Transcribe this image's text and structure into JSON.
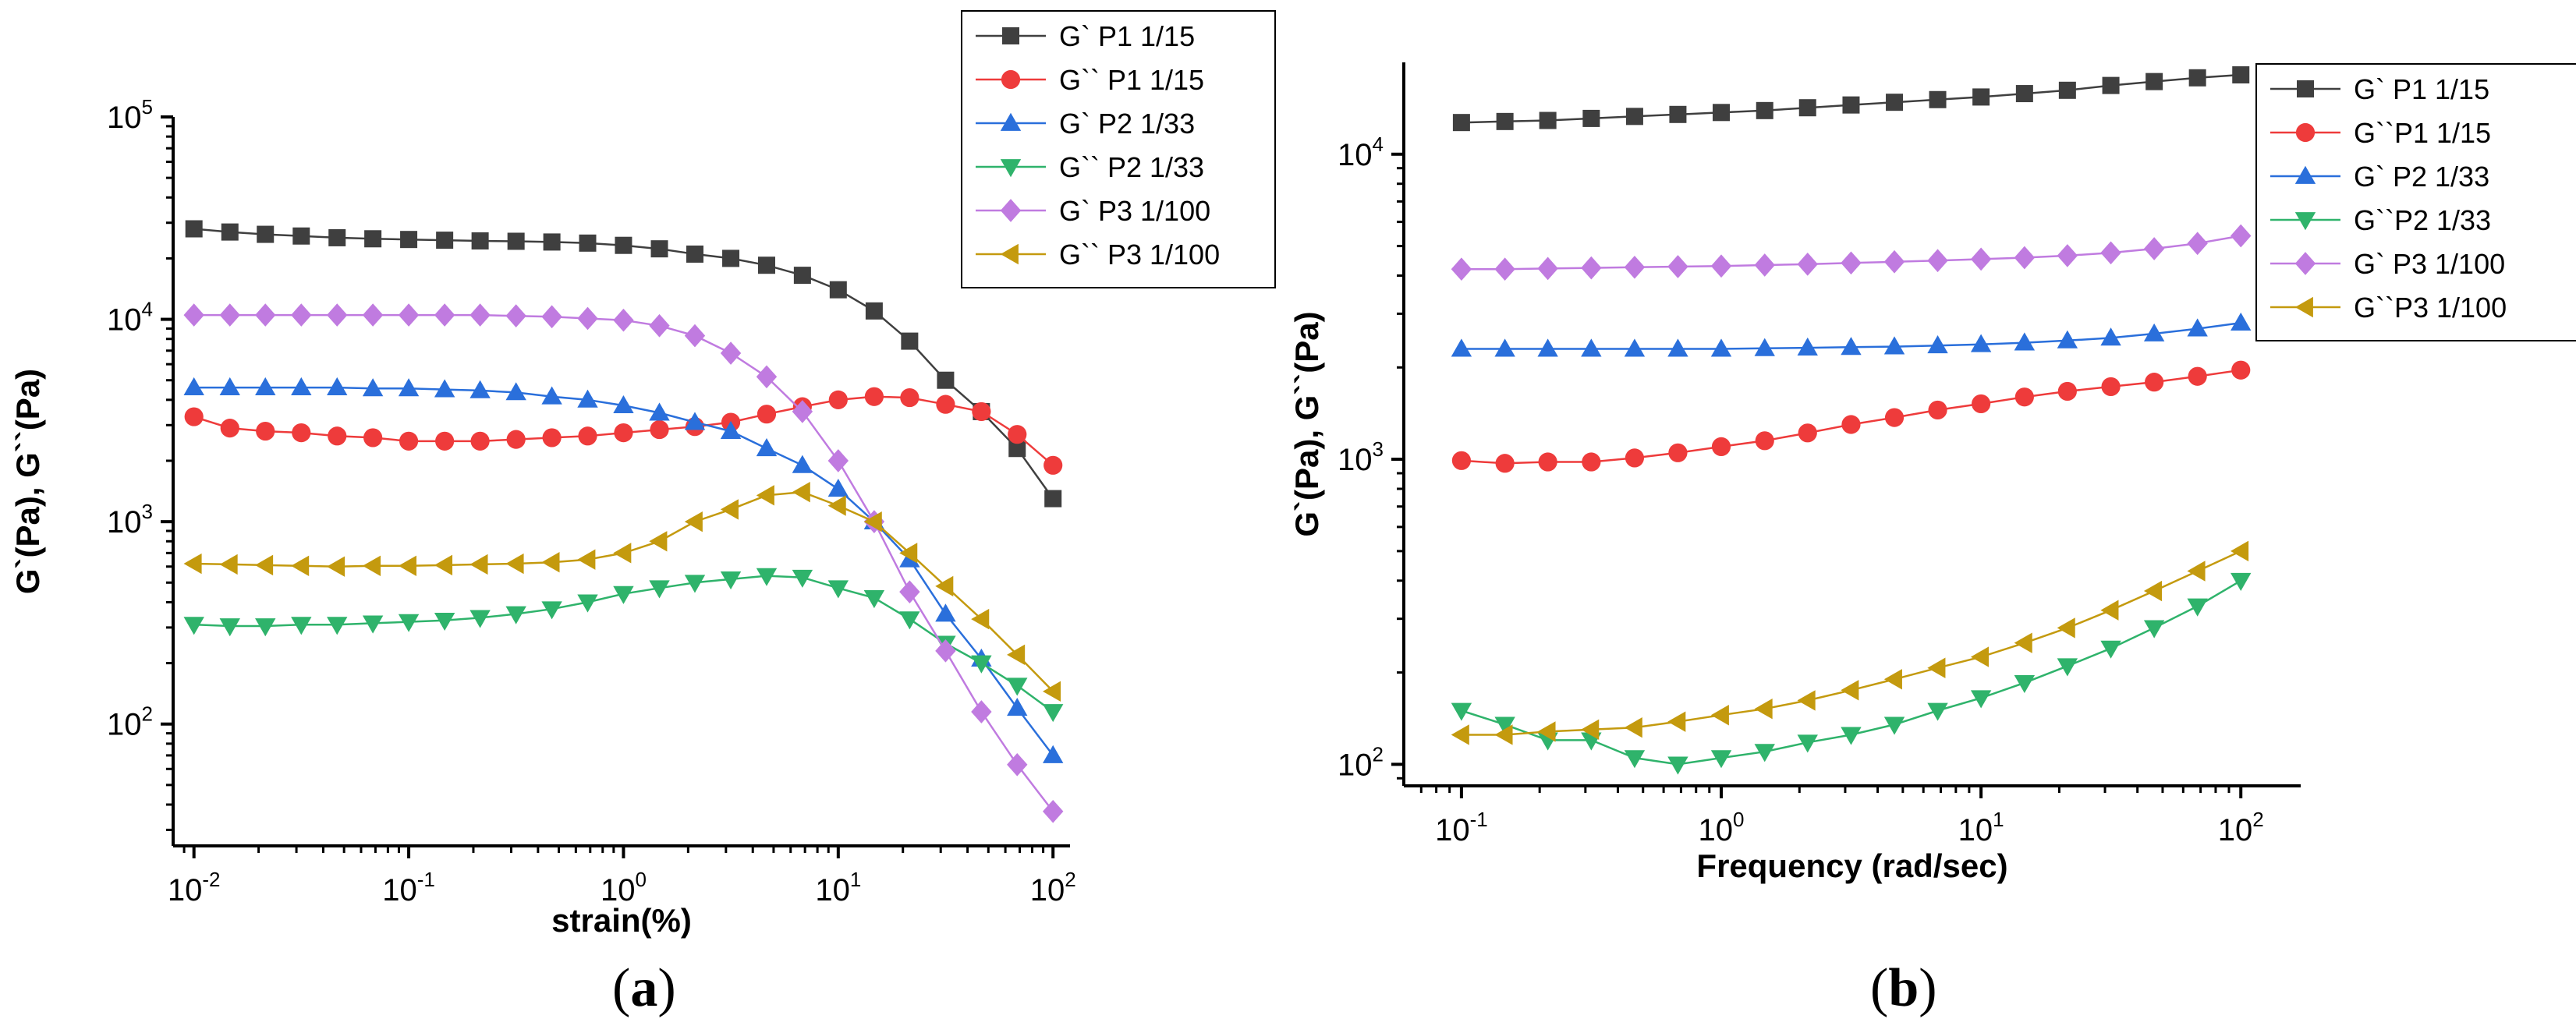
{
  "colors": {
    "P1_storage": "#3f3f3f",
    "P1_loss": "#ee3b3b",
    "P2_storage": "#2a6fdb",
    "P2_loss": "#2fb36b",
    "P3_storage": "#c07be0",
    "P3_loss": "#c49a0e"
  },
  "captions": {
    "a": "a",
    "b": "b"
  },
  "chart_data": [
    {
      "type": "line",
      "panel": "a",
      "xscale": "log",
      "yscale": "log",
      "xlabel": "strain(%)",
      "ylabel": "G`(Pa), G``(Pa)",
      "xlim": [
        0.008,
        120
      ],
      "ylim": [
        25,
        100000
      ],
      "xticks": [
        {
          "v": 0.01,
          "b": "10",
          "e": "-2"
        },
        {
          "v": 0.1,
          "b": "10",
          "e": "-1"
        },
        {
          "v": 1,
          "b": "10",
          "e": "0"
        },
        {
          "v": 10,
          "b": "10",
          "e": "1"
        },
        {
          "v": 100,
          "b": "10",
          "e": "2"
        }
      ],
      "yticks": [
        {
          "v": 100,
          "b": "10",
          "e": "2"
        },
        {
          "v": 1000,
          "b": "10",
          "e": "3"
        },
        {
          "v": 10000,
          "b": "10",
          "e": "4"
        },
        {
          "v": 100000,
          "b": "10",
          "e": "5"
        }
      ],
      "legend_position": "top-right-outside",
      "x": [
        0.01,
        0.0147,
        0.0215,
        0.0316,
        0.0464,
        0.0681,
        0.1,
        0.147,
        0.215,
        0.316,
        0.464,
        0.681,
        1.0,
        1.47,
        2.15,
        3.16,
        4.64,
        6.81,
        10.0,
        14.7,
        21.5,
        31.6,
        46.4,
        68.1,
        100
      ],
      "series": [
        {
          "name": "G`  P1 1/15",
          "marker": "square",
          "color_key": "P1_storage",
          "values": [
            28000,
            27000,
            26300,
            25800,
            25300,
            25000,
            24800,
            24600,
            24400,
            24300,
            24100,
            23800,
            23200,
            22300,
            21000,
            20000,
            18500,
            16500,
            14000,
            11000,
            7800,
            5000,
            3500,
            2300,
            1300
          ]
        },
        {
          "name": "G``  P1 1/15",
          "marker": "circle",
          "color_key": "P1_loss",
          "values": [
            3300,
            2900,
            2800,
            2750,
            2650,
            2600,
            2500,
            2500,
            2500,
            2550,
            2600,
            2650,
            2750,
            2850,
            2950,
            3100,
            3400,
            3700,
            4000,
            4150,
            4100,
            3800,
            3500,
            2700,
            1900
          ]
        },
        {
          "name": "G`  P2 1/33",
          "marker": "triangle-up",
          "color_key": "P2_storage",
          "values": [
            4600,
            4600,
            4600,
            4600,
            4600,
            4550,
            4550,
            4500,
            4450,
            4350,
            4150,
            4000,
            3750,
            3450,
            3100,
            2800,
            2300,
            1900,
            1450,
            1000,
            650,
            350,
            210,
            120,
            70
          ]
        },
        {
          "name": "G``  P2 1/33",
          "marker": "triangle-down",
          "color_key": "P2_loss",
          "values": [
            310,
            305,
            305,
            310,
            310,
            315,
            320,
            325,
            335,
            350,
            370,
            400,
            440,
            470,
            500,
            520,
            540,
            530,
            470,
            420,
            330,
            250,
            200,
            155,
            115
          ]
        },
        {
          "name": "G`  P3 1/100",
          "marker": "diamond",
          "color_key": "P3_storage",
          "values": [
            10500,
            10500,
            10500,
            10500,
            10500,
            10500,
            10500,
            10500,
            10500,
            10400,
            10300,
            10100,
            9900,
            9300,
            8300,
            6800,
            5200,
            3500,
            2000,
            1000,
            450,
            230,
            115,
            63,
            37
          ]
        },
        {
          "name": "G``  P3 1/100",
          "marker": "triangle-left",
          "color_key": "P3_loss",
          "values": [
            620,
            615,
            610,
            605,
            600,
            605,
            605,
            610,
            615,
            620,
            630,
            650,
            700,
            800,
            1000,
            1150,
            1350,
            1400,
            1200,
            1000,
            700,
            480,
            330,
            220,
            145
          ]
        }
      ]
    },
    {
      "type": "line",
      "panel": "b",
      "xscale": "log",
      "yscale": "log",
      "xlabel": "Frequency (rad/sec)",
      "ylabel": "G`(Pa), G``(Pa)",
      "xlim": [
        0.06,
        170
      ],
      "ylim": [
        85,
        20000
      ],
      "xticks": [
        {
          "v": 0.1,
          "b": "10",
          "e": "-1"
        },
        {
          "v": 1,
          "b": "10",
          "e": "0"
        },
        {
          "v": 10,
          "b": "10",
          "e": "1"
        },
        {
          "v": 100,
          "b": "10",
          "e": "2"
        }
      ],
      "yticks": [
        {
          "v": 100,
          "b": "10",
          "e": "2"
        },
        {
          "v": 1000,
          "b": "10",
          "e": "3"
        },
        {
          "v": 10000,
          "b": "10",
          "e": "4"
        }
      ],
      "legend_position": "top-right",
      "x": [
        0.1,
        0.147,
        0.215,
        0.316,
        0.464,
        0.681,
        1.0,
        1.47,
        2.15,
        3.16,
        4.64,
        6.81,
        10.0,
        14.7,
        21.5,
        31.6,
        46.4,
        68.1,
        100
      ],
      "series": [
        {
          "name": "G`  P1 1/15",
          "marker": "square",
          "color_key": "P1_storage",
          "values": [
            12700,
            12800,
            12900,
            13100,
            13300,
            13500,
            13700,
            13900,
            14200,
            14500,
            14800,
            15100,
            15400,
            15800,
            16200,
            16800,
            17300,
            17800,
            18200
          ]
        },
        {
          "name": "G``P1 1/15",
          "marker": "circle",
          "color_key": "P1_loss",
          "values": [
            990,
            970,
            980,
            980,
            1010,
            1050,
            1100,
            1150,
            1220,
            1300,
            1370,
            1450,
            1520,
            1600,
            1670,
            1730,
            1790,
            1870,
            1960
          ]
        },
        {
          "name": "G`  P2 1/33",
          "marker": "triangle-up",
          "color_key": "P2_storage",
          "values": [
            2300,
            2300,
            2300,
            2300,
            2300,
            2300,
            2300,
            2310,
            2320,
            2330,
            2340,
            2360,
            2380,
            2410,
            2450,
            2500,
            2580,
            2680,
            2800
          ]
        },
        {
          "name": "G``P2 1/33",
          "marker": "triangle-down",
          "color_key": "P2_loss",
          "values": [
            150,
            135,
            120,
            120,
            105,
            100,
            105,
            110,
            118,
            125,
            135,
            150,
            165,
            185,
            210,
            240,
            280,
            330,
            400
          ]
        },
        {
          "name": "G`  P3 1/100",
          "marker": "diamond",
          "color_key": "P3_storage",
          "values": [
            4200,
            4200,
            4220,
            4240,
            4260,
            4280,
            4300,
            4330,
            4360,
            4400,
            4440,
            4480,
            4530,
            4580,
            4650,
            4750,
            4900,
            5100,
            5400
          ]
        },
        {
          "name": "G``P3 1/100",
          "marker": "triangle-left",
          "color_key": "P3_loss",
          "values": [
            125,
            125,
            128,
            130,
            132,
            138,
            145,
            152,
            162,
            175,
            190,
            207,
            225,
            250,
            280,
            320,
            370,
            430,
            500
          ]
        }
      ]
    }
  ]
}
